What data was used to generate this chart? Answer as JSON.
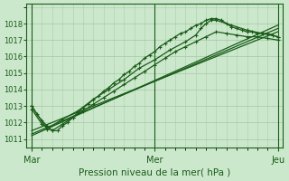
{
  "bg_color": "#cce8cc",
  "grid_color": "#aaccaa",
  "line_color": "#1a5c1a",
  "title": "Pression niveau de la mer( hPa )",
  "xlabel_days": [
    "Mar",
    "Mer",
    "Jeu"
  ],
  "xlabel_day_positions": [
    0,
    48,
    96
  ],
  "ylim": [
    1010.5,
    1019.2
  ],
  "yticks": [
    1011,
    1012,
    1013,
    1014,
    1015,
    1016,
    1017,
    1018
  ],
  "xlim": [
    -2,
    98
  ],
  "series": [
    {
      "x": [
        0,
        2,
        4,
        6,
        8,
        10,
        12,
        14,
        16,
        18,
        20,
        22,
        24,
        26,
        28,
        30,
        32,
        34,
        36,
        38,
        40,
        42,
        44,
        46,
        48,
        50,
        52,
        54,
        56,
        58,
        60,
        62,
        64,
        66,
        68,
        70,
        72,
        74,
        76,
        78,
        80,
        82,
        84,
        86,
        88,
        90,
        92,
        94,
        96
      ],
      "y": [
        1013.0,
        1012.5,
        1012.1,
        1011.8,
        1011.5,
        1011.5,
        1011.8,
        1012.0,
        1012.3,
        1012.6,
        1012.9,
        1013.1,
        1013.4,
        1013.6,
        1013.9,
        1014.1,
        1014.4,
        1014.6,
        1014.9,
        1015.1,
        1015.4,
        1015.6,
        1015.9,
        1016.1,
        1016.3,
        1016.6,
        1016.8,
        1017.0,
        1017.2,
        1017.4,
        1017.5,
        1017.7,
        1017.9,
        1018.0,
        1018.2,
        1018.3,
        1018.3,
        1018.2,
        1018.0,
        1017.8,
        1017.7,
        1017.6,
        1017.5,
        1017.5,
        1017.4,
        1017.4,
        1017.4,
        1017.3,
        1017.2
      ],
      "marker": true,
      "lw": 0.9
    },
    {
      "x": [
        0,
        96
      ],
      "y": [
        1011.5,
        1017.5
      ],
      "marker": false,
      "lw": 0.9
    },
    {
      "x": [
        0,
        96
      ],
      "y": [
        1011.3,
        1017.7
      ],
      "marker": false,
      "lw": 0.9
    },
    {
      "x": [
        0,
        96
      ],
      "y": [
        1011.2,
        1017.9
      ],
      "marker": false,
      "lw": 0.9
    },
    {
      "x": [
        0,
        4,
        8,
        12,
        16,
        20,
        24,
        28,
        32,
        36,
        40,
        44,
        48,
        52,
        56,
        60,
        64,
        68,
        72,
        76,
        80,
        84,
        88,
        92,
        96
      ],
      "y": [
        1012.8,
        1011.9,
        1011.5,
        1011.9,
        1012.3,
        1012.7,
        1013.1,
        1013.5,
        1013.9,
        1014.3,
        1014.7,
        1015.1,
        1015.5,
        1015.9,
        1016.3,
        1016.6,
        1016.9,
        1017.2,
        1017.5,
        1017.4,
        1017.3,
        1017.2,
        1017.2,
        1017.1,
        1017.0
      ],
      "marker": true,
      "lw": 0.9
    },
    {
      "x": [
        0,
        6,
        12,
        18,
        24,
        30,
        36,
        42,
        48,
        54,
        60,
        64,
        66,
        68,
        70,
        72,
        78,
        84,
        90,
        96
      ],
      "y": [
        1013.0,
        1011.6,
        1012.2,
        1012.7,
        1013.4,
        1014.0,
        1014.6,
        1015.3,
        1015.8,
        1016.4,
        1016.9,
        1017.3,
        1017.7,
        1018.0,
        1018.2,
        1018.2,
        1017.9,
        1017.6,
        1017.4,
        1017.2
      ],
      "marker": true,
      "lw": 0.9
    }
  ]
}
